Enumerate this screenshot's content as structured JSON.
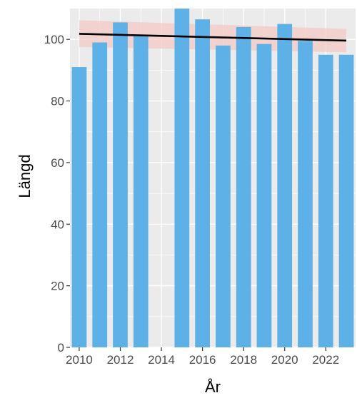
{
  "colors": {
    "panel_background": "#ebebeb",
    "grid_major": "#ffffff",
    "bar_fill": "#5db1e6",
    "trend_line": "#000000",
    "confidence_band": "#f3c9c4",
    "tick_text": "#4d4d4d",
    "axis_title_text": "#000000"
  },
  "chart_data": {
    "type": "bar",
    "title": "",
    "xlabel": "År",
    "ylabel": "Längd",
    "x": [
      2010,
      2011,
      2012,
      2013,
      2015,
      2016,
      2017,
      2018,
      2019,
      2020,
      2021,
      2022,
      2023
    ],
    "values": [
      91,
      99,
      105.5,
      101,
      110,
      106.5,
      98,
      104,
      98.5,
      105,
      99.5,
      95,
      95
    ],
    "xlim": [
      2009.55,
      2023.45
    ],
    "ylim": [
      0,
      110
    ],
    "x_tick_values": [
      2010,
      2012,
      2014,
      2016,
      2018,
      2020,
      2022
    ],
    "x_tick_labels": [
      "2010",
      "2012",
      "2014",
      "2016",
      "2018",
      "2020",
      "2022"
    ],
    "y_tick_values": [
      0,
      20,
      40,
      60,
      80,
      100
    ],
    "y_tick_labels": [
      "0",
      "20",
      "40",
      "60",
      "80",
      "100"
    ],
    "grid": true,
    "trend_line": {
      "type": "linear",
      "x": [
        2010,
        2023
      ],
      "y": [
        101.8,
        99.6
      ],
      "band_lower": [
        97.5,
        95.8
      ],
      "band_upper": [
        106.2,
        103.4
      ]
    }
  }
}
